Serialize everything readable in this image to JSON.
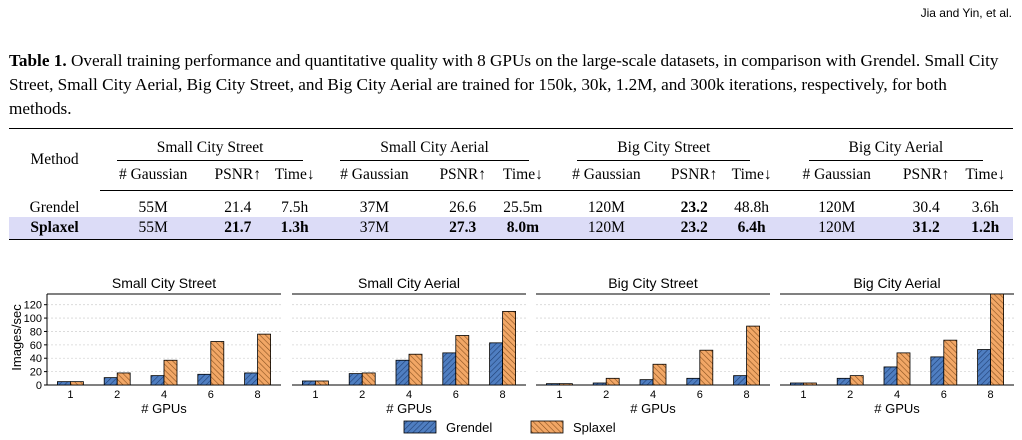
{
  "header": {
    "running_head": "Jia and Yin, et al."
  },
  "caption": {
    "label": "Table 1.",
    "text": "Overall training performance and quantitative quality with 8 GPUs on the large-scale datasets, in comparison with Grendel. Small City Street, Small City Aerial, Big City Street, and Big City Aerial are trained for 150k, 30k, 1.2M, and 300k iterations, respectively, for both methods."
  },
  "table": {
    "method_header": "Method",
    "groups": [
      "Small City Street",
      "Small City Aerial",
      "Big City Street",
      "Big City Aerial"
    ],
    "subheaders": [
      "# Gaussian",
      "PSNR↑",
      "Time↓"
    ],
    "rows": [
      {
        "method": "Grendel",
        "cells": [
          "55M",
          "21.4",
          "7.5h",
          "37M",
          "26.6",
          "25.5m",
          "120M",
          "23.2",
          "48.8h",
          "120M",
          "30.4",
          "3.6h"
        ]
      },
      {
        "method": "Splaxel",
        "cells": [
          "55M",
          "21.7",
          "1.3h",
          "37M",
          "27.3",
          "8.0m",
          "120M",
          "23.2",
          "6.4h",
          "120M",
          "31.2",
          "1.2h"
        ]
      }
    ]
  },
  "chart_data": [
    {
      "type": "bar",
      "title": "Small City Street",
      "categories": [
        "1",
        "2",
        "4",
        "6",
        "8"
      ],
      "xlabel": "# GPUs",
      "ylabel": "Images/sec",
      "ylim": [
        0,
        130
      ],
      "yticks": [
        0,
        20,
        40,
        60,
        80,
        100,
        120
      ],
      "series": [
        {
          "name": "Grendel",
          "values": [
            5,
            11,
            14,
            16,
            18
          ]
        },
        {
          "name": "Splaxel",
          "values": [
            5,
            18,
            37,
            65,
            76
          ]
        }
      ]
    },
    {
      "type": "bar",
      "title": "Small City Aerial",
      "categories": [
        "1",
        "2",
        "4",
        "6",
        "8"
      ],
      "xlabel": "# GPUs",
      "ylim": [
        0,
        130
      ],
      "series": [
        {
          "name": "Grendel",
          "values": [
            6,
            17,
            37,
            48,
            63
          ]
        },
        {
          "name": "Splaxel",
          "values": [
            6,
            18,
            46,
            74,
            110
          ]
        }
      ]
    },
    {
      "type": "bar",
      "title": "Big City Street",
      "categories": [
        "1",
        "2",
        "4",
        "6",
        "8"
      ],
      "xlabel": "# GPUs",
      "ylim": [
        0,
        130
      ],
      "series": [
        {
          "name": "Grendel",
          "values": [
            2,
            3,
            8,
            10,
            14
          ]
        },
        {
          "name": "Splaxel",
          "values": [
            2,
            10,
            31,
            52,
            88
          ]
        }
      ]
    },
    {
      "type": "bar",
      "title": "Big City Aerial",
      "categories": [
        "1",
        "2",
        "4",
        "6",
        "8"
      ],
      "xlabel": "# GPUs",
      "ylim": [
        0,
        130
      ],
      "series": [
        {
          "name": "Grendel",
          "values": [
            3,
            10,
            27,
            42,
            53
          ]
        },
        {
          "name": "Splaxel",
          "values": [
            3,
            14,
            48,
            67,
            136
          ]
        }
      ]
    }
  ],
  "legend": [
    "Grendel",
    "Splaxel"
  ],
  "colors": {
    "grendel": "#4f7ec1",
    "splaxel": "#f2a766",
    "highlight": "#dcdcf7"
  }
}
